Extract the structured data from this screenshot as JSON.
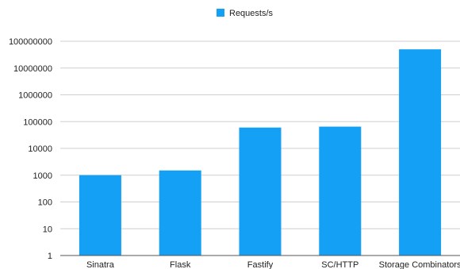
{
  "chart_data": {
    "type": "bar",
    "scale": "log",
    "categories": [
      "Sinatra",
      "Flask",
      "Fastify",
      "SC/HTTP",
      "Storage Combinators"
    ],
    "series": [
      {
        "name": "Requests/s",
        "values": [
          1000,
          1500,
          60000,
          65000,
          50000000
        ]
      }
    ],
    "y_ticks": [
      "1",
      "10",
      "100",
      "1000",
      "10000",
      "100000",
      "1000000",
      "10000000",
      "100000000"
    ],
    "ylim": [
      1,
      100000000
    ],
    "grid": true,
    "legend": "top-center",
    "colors": {
      "bar": "#13a0f5"
    }
  }
}
